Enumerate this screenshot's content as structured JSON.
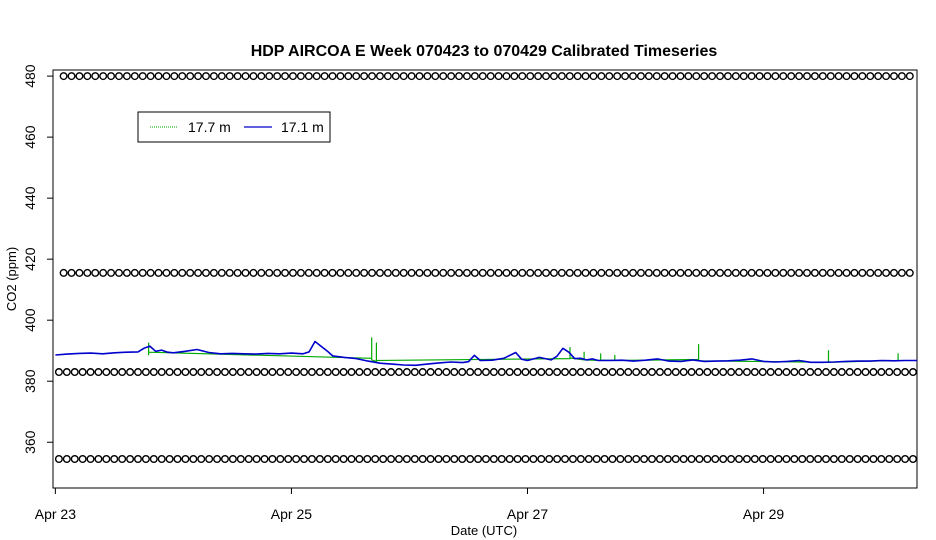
{
  "chart_data": {
    "type": "line",
    "title": "HDP AIRCOA E  Week 070423 to 070429  Calibrated Timeseries",
    "xlabel": "Date (UTC)",
    "ylabel": "CO2 (ppm)",
    "xlim": [
      -0.02,
      7.3
    ],
    "ylim": [
      345,
      482
    ],
    "x_ticks": [
      {
        "value": 0,
        "label": "Apr 23"
      },
      {
        "value": 2,
        "label": "Apr 25"
      },
      {
        "value": 4,
        "label": "Apr 27"
      },
      {
        "value": 6,
        "label": "Apr 29"
      }
    ],
    "y_ticks": [
      360,
      380,
      400,
      420,
      440,
      460,
      480
    ],
    "x_units": "days since Apr 23 00:00 UTC",
    "legend": {
      "position": "top-left",
      "entries": [
        {
          "name": "17.7 m",
          "color": "#00aa00"
        },
        {
          "name": "17.1 m",
          "color": "#0000cc"
        }
      ]
    },
    "series": [
      {
        "name": "17.1 m",
        "color": "#0000cc",
        "points": [
          [
            0.0,
            388.6
          ],
          [
            0.1,
            388.9
          ],
          [
            0.2,
            389.1
          ],
          [
            0.3,
            389.2
          ],
          [
            0.4,
            389.0
          ],
          [
            0.5,
            389.3
          ],
          [
            0.6,
            389.5
          ],
          [
            0.7,
            389.6
          ],
          [
            0.75,
            390.8
          ],
          [
            0.8,
            391.5
          ],
          [
            0.85,
            389.8
          ],
          [
            0.9,
            390.2
          ],
          [
            0.95,
            389.5
          ],
          [
            1.0,
            389.3
          ],
          [
            1.1,
            389.8
          ],
          [
            1.2,
            390.4
          ],
          [
            1.3,
            389.4
          ],
          [
            1.4,
            389.0
          ],
          [
            1.5,
            389.1
          ],
          [
            1.6,
            389.0
          ],
          [
            1.7,
            388.9
          ],
          [
            1.8,
            389.1
          ],
          [
            1.9,
            389.0
          ],
          [
            2.0,
            389.2
          ],
          [
            2.05,
            389.1
          ],
          [
            2.1,
            389.0
          ],
          [
            2.15,
            389.6
          ],
          [
            2.2,
            393.0
          ],
          [
            2.25,
            391.5
          ],
          [
            2.3,
            390.0
          ],
          [
            2.35,
            388.3
          ],
          [
            2.45,
            387.8
          ],
          [
            2.55,
            387.4
          ],
          [
            2.65,
            386.6
          ],
          [
            2.75,
            385.9
          ],
          [
            2.85,
            385.6
          ],
          [
            2.95,
            385.3
          ],
          [
            3.05,
            385.2
          ],
          [
            3.15,
            385.6
          ],
          [
            3.25,
            386.0
          ],
          [
            3.35,
            386.3
          ],
          [
            3.45,
            386.1
          ],
          [
            3.5,
            386.4
          ],
          [
            3.55,
            388.5
          ],
          [
            3.6,
            386.8
          ],
          [
            3.7,
            386.9
          ],
          [
            3.8,
            387.5
          ],
          [
            3.9,
            389.4
          ],
          [
            3.95,
            387.2
          ],
          [
            4.0,
            386.8
          ],
          [
            4.1,
            387.8
          ],
          [
            4.2,
            387.0
          ],
          [
            4.25,
            388.2
          ],
          [
            4.3,
            390.8
          ],
          [
            4.35,
            389.5
          ],
          [
            4.4,
            387.4
          ],
          [
            4.45,
            387.5
          ],
          [
            4.5,
            387.0
          ],
          [
            4.55,
            387.3
          ],
          [
            4.6,
            386.8
          ],
          [
            4.7,
            386.8
          ],
          [
            4.8,
            386.9
          ],
          [
            4.9,
            386.6
          ],
          [
            5.0,
            386.9
          ],
          [
            5.1,
            387.3
          ],
          [
            5.2,
            386.6
          ],
          [
            5.3,
            386.5
          ],
          [
            5.4,
            387.0
          ],
          [
            5.5,
            386.5
          ],
          [
            5.6,
            386.6
          ],
          [
            5.7,
            386.7
          ],
          [
            5.8,
            386.9
          ],
          [
            5.9,
            387.3
          ],
          [
            6.0,
            386.5
          ],
          [
            6.1,
            386.3
          ],
          [
            6.2,
            386.5
          ],
          [
            6.3,
            386.8
          ],
          [
            6.4,
            386.2
          ],
          [
            6.5,
            386.2
          ],
          [
            6.6,
            386.3
          ],
          [
            6.7,
            386.5
          ],
          [
            6.8,
            386.6
          ],
          [
            6.9,
            386.6
          ],
          [
            7.0,
            386.8
          ],
          [
            7.1,
            386.7
          ],
          [
            7.2,
            386.8
          ],
          [
            7.3,
            386.8
          ]
        ]
      },
      {
        "name": "17.7 m",
        "color": "#00aa00",
        "points": [
          [
            0.79,
            388.5
          ],
          [
            0.79,
            392.5
          ],
          [
            0.79,
            389.5
          ],
          [
            2.68,
            387.5
          ],
          [
            2.68,
            394.2
          ],
          [
            2.68,
            387.0
          ],
          [
            2.72,
            386.5
          ],
          [
            2.72,
            392.5
          ],
          [
            2.72,
            386.8
          ],
          [
            4.36,
            387.4
          ],
          [
            4.36,
            391.0
          ],
          [
            4.36,
            387.6
          ],
          [
            4.48,
            387.0
          ],
          [
            4.48,
            389.5
          ],
          [
            4.48,
            387.0
          ],
          [
            4.62,
            386.8
          ],
          [
            4.62,
            389.0
          ],
          [
            4.62,
            386.9
          ],
          [
            4.74,
            386.9
          ],
          [
            4.74,
            388.5
          ],
          [
            4.74,
            386.8
          ],
          [
            5.45,
            387.1
          ],
          [
            5.45,
            392.0
          ],
          [
            5.45,
            386.7
          ],
          [
            6.55,
            386.2
          ],
          [
            6.55,
            390.0
          ],
          [
            6.55,
            386.2
          ],
          [
            7.14,
            386.8
          ],
          [
            7.14,
            389.0
          ],
          [
            7.14,
            386.7
          ]
        ]
      },
      {
        "name": "calibration-480",
        "type": "scatter",
        "marker": "circle-open",
        "y": 480,
        "x_start": 0.07,
        "x_end": 7.28,
        "x_step": 0.067
      },
      {
        "name": "calibration-415",
        "type": "scatter",
        "marker": "circle-open",
        "y": 415.5,
        "x_start": 0.07,
        "x_end": 7.28,
        "x_step": 0.067
      },
      {
        "name": "calibration-383",
        "type": "scatter",
        "marker": "circle-open",
        "y": 383,
        "x_start": 0.03,
        "x_end": 7.28,
        "x_step": 0.067
      },
      {
        "name": "calibration-354",
        "type": "scatter",
        "marker": "circle-open",
        "y": 354.5,
        "x_start": 0.03,
        "x_end": 7.28,
        "x_step": 0.067
      }
    ]
  }
}
